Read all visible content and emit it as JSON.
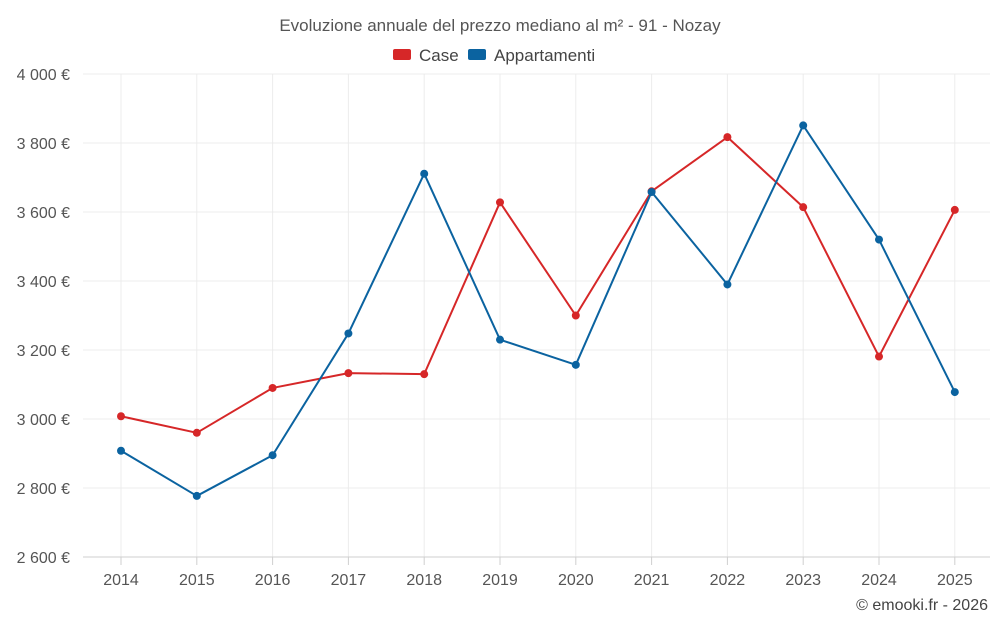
{
  "chart_data": {
    "type": "line",
    "title": "Evoluzione annuale del prezzo mediano al m² - 91 - Nozay",
    "categories": [
      "2014",
      "2015",
      "2016",
      "2017",
      "2018",
      "2019",
      "2020",
      "2021",
      "2022",
      "2023",
      "2024",
      "2025"
    ],
    "series": [
      {
        "name": "Case",
        "color": "#d62728",
        "values": [
          3008,
          2960,
          3090,
          3133,
          3130,
          3628,
          3300,
          3660,
          3817,
          3614,
          3181,
          3606
        ]
      },
      {
        "name": "Appartamenti",
        "color": "#0b63a0",
        "values": [
          2908,
          2777,
          2895,
          3248,
          3711,
          3230,
          3157,
          3658,
          3390,
          3851,
          3520,
          3078
        ]
      }
    ],
    "ylim": [
      2600,
      4000
    ],
    "yticks": [
      2600,
      2800,
      3000,
      3200,
      3400,
      3600,
      3800,
      4000
    ],
    "ytick_labels": [
      "2 600 €",
      "2 800 €",
      "3 000 €",
      "3 200 €",
      "3 400 €",
      "3 600 €",
      "3 800 €",
      "4 000 €"
    ],
    "xlabel": "",
    "ylabel": "",
    "grid": true,
    "legend_position": "top-center"
  },
  "credit": "© emooki.fr - 2026"
}
